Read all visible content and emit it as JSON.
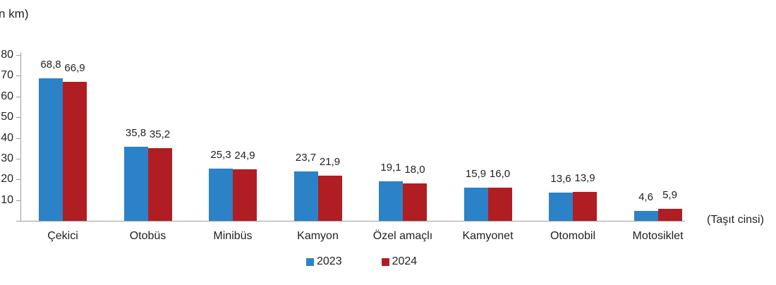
{
  "chart_data": {
    "type": "bar",
    "title": "",
    "unit_label": "n km)",
    "xlabel": "(Taşıt cinsi)",
    "ylabel": "",
    "categories": [
      "Çekici",
      "Otobüs",
      "Minibüs",
      "Kamyon",
      "Özel amaçlı",
      "Kamyonet",
      "Otomobil",
      "Motosiklet"
    ],
    "series": [
      {
        "name": "2023",
        "color": "#2C82C6",
        "values": [
          68.8,
          35.8,
          25.3,
          23.7,
          19.1,
          15.9,
          13.6,
          4.6
        ]
      },
      {
        "name": "2024",
        "color": "#B01E23",
        "values": [
          66.9,
          35.2,
          24.9,
          21.9,
          18.0,
          16.0,
          13.9,
          5.9
        ]
      }
    ],
    "y_ticks": [
      10,
      20,
      30,
      40,
      50,
      60,
      70,
      80
    ],
    "ylim": [
      0,
      80
    ],
    "grid": false,
    "legend_position": "bottom",
    "decimal_separator": ","
  }
}
